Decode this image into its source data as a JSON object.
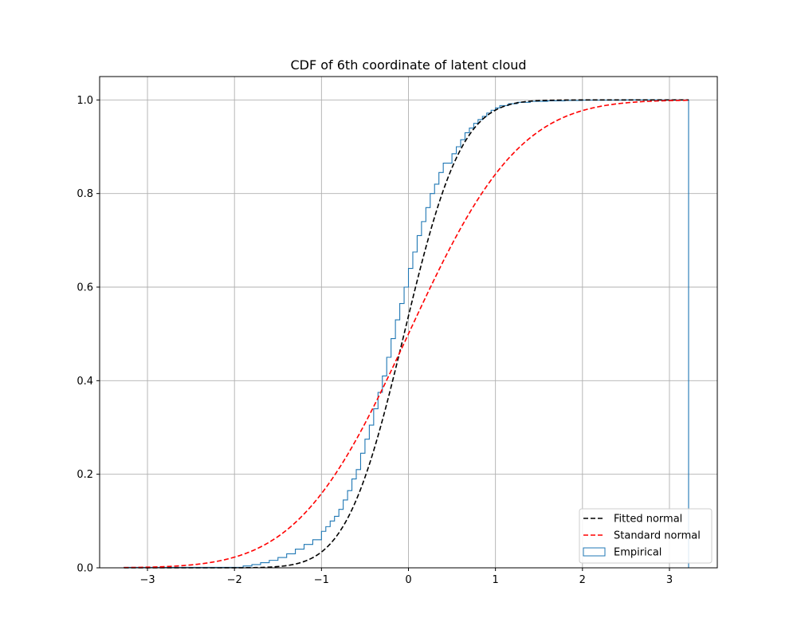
{
  "chart_data": {
    "type": "line",
    "title": "CDF of 6th coordinate of latent cloud",
    "xlabel": "",
    "ylabel": "",
    "xlim": [
      -3.55,
      3.55
    ],
    "ylim": [
      0.0,
      1.05
    ],
    "x_ticks": [
      -3,
      -2,
      -1,
      0,
      1,
      2,
      3
    ],
    "x_tick_labels": [
      "−3",
      "−2",
      "−1",
      "0",
      "1",
      "2",
      "3"
    ],
    "y_ticks": [
      0.0,
      0.2,
      0.4,
      0.6,
      0.8,
      1.0
    ],
    "y_tick_labels": [
      "0.0",
      "0.2",
      "0.4",
      "0.6",
      "0.8",
      "1.0"
    ],
    "grid": true,
    "legend_position": "lower-right",
    "series": [
      {
        "name": "Fitted normal",
        "kind": "line",
        "style": "dashed",
        "color": "#000000",
        "distribution": {
          "mean": -0.05,
          "std": 0.52
        },
        "x_range": [
          -3.27,
          3.22
        ]
      },
      {
        "name": "Standard normal",
        "kind": "line",
        "style": "dashed",
        "color": "#ff0000",
        "distribution": {
          "mean": 0.0,
          "std": 1.0
        },
        "x_range": [
          -3.27,
          3.22
        ]
      },
      {
        "name": "Empirical",
        "kind": "step-histogram",
        "color": "#1f77b4",
        "x": [
          -3.27,
          -1.9,
          -1.8,
          -1.7,
          -1.6,
          -1.5,
          -1.4,
          -1.3,
          -1.2,
          -1.1,
          -1.0,
          -0.95,
          -0.9,
          -0.85,
          -0.8,
          -0.75,
          -0.7,
          -0.65,
          -0.6,
          -0.55,
          -0.5,
          -0.45,
          -0.4,
          -0.35,
          -0.3,
          -0.25,
          -0.2,
          -0.15,
          -0.1,
          -0.05,
          0.0,
          0.05,
          0.1,
          0.15,
          0.2,
          0.25,
          0.3,
          0.35,
          0.4,
          0.5,
          0.55,
          0.6,
          0.65,
          0.7,
          0.75,
          0.8,
          0.85,
          0.9,
          0.95,
          1.0,
          1.05,
          1.15,
          1.25,
          1.4,
          1.6,
          1.8,
          2.0,
          2.5,
          3.22
        ],
        "values": [
          0.001,
          0.004,
          0.007,
          0.011,
          0.016,
          0.022,
          0.03,
          0.04,
          0.05,
          0.06,
          0.078,
          0.088,
          0.1,
          0.11,
          0.125,
          0.145,
          0.165,
          0.19,
          0.21,
          0.245,
          0.275,
          0.305,
          0.34,
          0.375,
          0.41,
          0.45,
          0.49,
          0.53,
          0.565,
          0.6,
          0.64,
          0.675,
          0.71,
          0.74,
          0.77,
          0.8,
          0.82,
          0.845,
          0.865,
          0.885,
          0.9,
          0.915,
          0.93,
          0.94,
          0.95,
          0.958,
          0.965,
          0.972,
          0.978,
          0.983,
          0.988,
          0.992,
          0.995,
          0.997,
          0.998,
          0.999,
          0.9995,
          1.0,
          1.0
        ]
      }
    ]
  }
}
